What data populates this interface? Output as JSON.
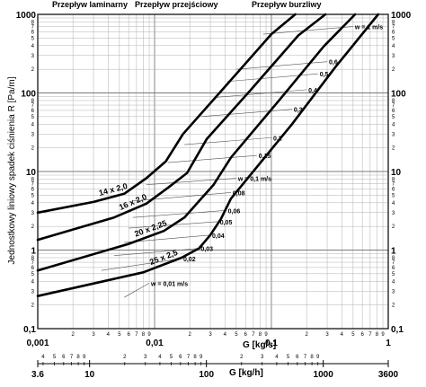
{
  "chart_data": {
    "type": "line",
    "title": "",
    "regions": [
      {
        "label": "Przepływ laminarny"
      },
      {
        "label": "Przepływ przejściowy"
      },
      {
        "label": "Przepływ burzliwy"
      }
    ],
    "ylabel": "Jednostkowy liniowy spadek ciśnienia R [Pa/m]",
    "xlabel_main": "G [kg/s]",
    "xlabel_secondary": "G [kg/h]",
    "xscale": "log",
    "yscale": "log",
    "xlim": [
      0.001,
      1
    ],
    "ylim": [
      0.1,
      1000
    ],
    "grid": true,
    "x_major_ticks": [
      {
        "value": 0.001,
        "label": "0,001"
      },
      {
        "value": 0.01,
        "label": "0,01"
      },
      {
        "value": 0.1,
        "label": "0,1"
      },
      {
        "value": 1,
        "label": "1"
      }
    ],
    "x_minor_labels": [
      "2",
      "3",
      "4",
      "5",
      "6",
      "7",
      "8",
      "9"
    ],
    "y_major_ticks": [
      {
        "value": 0.1,
        "label": "0,1"
      },
      {
        "value": 1,
        "label": "1"
      },
      {
        "value": 10,
        "label": "10"
      },
      {
        "value": 100,
        "label": "100"
      },
      {
        "value": 1000,
        "label": "1000"
      }
    ],
    "y_minor_labels": [
      "2",
      "3",
      "4",
      "5",
      "6",
      "7",
      "8"
    ],
    "secondary_x_ticks": [
      {
        "value_kg_h": 3.6,
        "label": "3.6"
      },
      {
        "value_kg_h": 10,
        "label": "10"
      },
      {
        "value_kg_h": 100,
        "label": "100"
      },
      {
        "value_kg_h": 1000,
        "label": "1000"
      },
      {
        "value_kg_h": 3600,
        "label": "3600"
      }
    ],
    "secondary_minor_labels": [
      "2",
      "3",
      "4",
      "5",
      "6",
      "7",
      "8",
      "9"
    ],
    "series": [
      {
        "name": "14 x 2,0",
        "x": [
          0.001,
          0.003,
          0.0055,
          0.0085,
          0.0125,
          0.0175,
          0.04,
          0.1,
          0.16
        ],
        "y": [
          3.0,
          4.1,
          5.2,
          8.2,
          13.5,
          30,
          120,
          560,
          1000
        ]
      },
      {
        "name": "16 x 2,0",
        "x": [
          0.001,
          0.0045,
          0.0085,
          0.013,
          0.019,
          0.028,
          0.065,
          0.17,
          0.29
        ],
        "y": [
          1.35,
          2.6,
          3.9,
          6.2,
          9.6,
          26,
          105,
          540,
          1000
        ]
      },
      {
        "name": "20 x 2,25",
        "x": [
          0.001,
          0.006,
          0.012,
          0.018,
          0.024,
          0.032,
          0.045,
          0.12,
          0.28,
          0.52
        ],
        "y": [
          0.55,
          1.2,
          1.75,
          2.6,
          4.2,
          6.8,
          15,
          85,
          390,
          1000
        ]
      },
      {
        "name": "25 x 2,5",
        "x": [
          0.001,
          0.008,
          0.017,
          0.024,
          0.03,
          0.037,
          0.045,
          0.06,
          0.15,
          0.35,
          0.82
        ],
        "y": [
          0.26,
          0.52,
          0.8,
          1.05,
          1.55,
          2.5,
          4.5,
          7.6,
          40,
          210,
          1000
        ]
      }
    ],
    "velocity_lines": [
      {
        "label": "w = 0,01 m/s",
        "x": [
          0.0055,
          0.009
        ],
        "y": [
          0.25,
          0.38
        ]
      },
      {
        "label": "0,02",
        "x": [
          0.0035,
          0.017
        ],
        "y": [
          0.55,
          0.78
        ]
      },
      {
        "label": "0,03",
        "x": [
          0.0045,
          0.024
        ],
        "y": [
          0.85,
          1.05
        ]
      },
      {
        "label": "0,04",
        "x": [
          0.0055,
          0.03
        ],
        "y": [
          1.25,
          1.55
        ]
      },
      {
        "label": "0,05",
        "x": [
          0.006,
          0.035
        ],
        "y": [
          1.9,
          2.3
        ]
      },
      {
        "label": "0,06",
        "x": [
          0.0065,
          0.041
        ],
        "y": [
          2.6,
          3.2
        ]
      },
      {
        "label": "0,08",
        "x": [
          0.0065,
          0.045
        ],
        "y": [
          4.2,
          5.4
        ]
      },
      {
        "label": "w = 0,1 m/s",
        "x": [
          0.0085,
          0.05
        ],
        "y": [
          6.8,
          8.2
        ]
      },
      {
        "label": "0,15",
        "x": [
          0.013,
          0.075
        ],
        "y": [
          13,
          16
        ]
      },
      {
        "label": "0,2",
        "x": [
          0.018,
          0.1
        ],
        "y": [
          22,
          27
        ]
      },
      {
        "label": "0,3",
        "x": [
          0.025,
          0.15
        ],
        "y": [
          50,
          62
        ]
      },
      {
        "label": "0,4",
        "x": [
          0.034,
          0.2
        ],
        "y": [
          88,
          110
        ]
      },
      {
        "label": "0,5",
        "x": [
          0.042,
          0.25
        ],
        "y": [
          140,
          175
        ]
      },
      {
        "label": "0,6",
        "x": [
          0.05,
          0.3
        ],
        "y": [
          200,
          250
        ]
      },
      {
        "label": "w = 1 m/s",
        "x": [
          0.085,
          0.5
        ],
        "y": [
          560,
          700
        ]
      }
    ]
  }
}
